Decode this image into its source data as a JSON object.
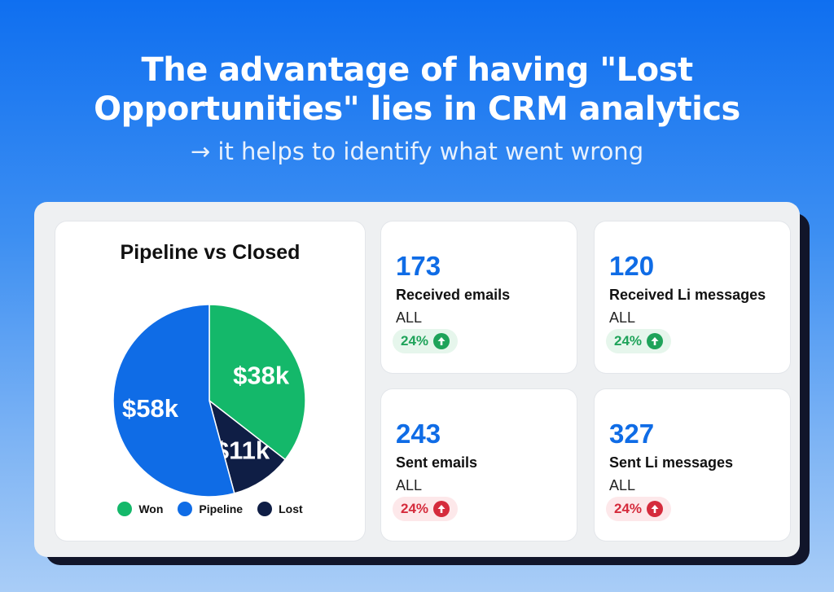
{
  "headline": {
    "line1": "The advantage of having \"Lost",
    "line2": "Opportunities\" lies in CRM analytics",
    "subline": "→ it helps to identify what went wrong"
  },
  "colors": {
    "won": "#14b86a",
    "pipeline": "#0f6ce6",
    "lost": "#0f1e45",
    "up": "#1fa35a",
    "down": "#d52b3c"
  },
  "chart_data": {
    "type": "pie",
    "title": "Pipeline vs Closed",
    "slices": [
      {
        "name": "Won",
        "value": 38,
        "label": "$38k",
        "color": "#14b86a"
      },
      {
        "name": "Lost",
        "value": 11,
        "label": "$11k",
        "color": "#0f1e45"
      },
      {
        "name": "Pipeline",
        "value": 58,
        "label": "$58k",
        "color": "#0f6ce6"
      }
    ],
    "legend": [
      "Won",
      "Pipeline",
      "Lost"
    ],
    "legend_position": "bottom"
  },
  "stats": [
    {
      "value": "173",
      "label": "Received emails",
      "sub": "ALL",
      "badge": "24%",
      "trend": "up",
      "icon": "arrow-up-circle-icon"
    },
    {
      "value": "120",
      "label": "Received Li messages",
      "sub": "ALL",
      "badge": "24%",
      "trend": "up",
      "icon": "arrow-up-circle-icon"
    },
    {
      "value": "243",
      "label": "Sent emails",
      "sub": "ALL",
      "badge": "24%",
      "trend": "down",
      "icon": "arrow-up-circle-icon"
    },
    {
      "value": "327",
      "label": "Sent Li messages",
      "sub": "ALL",
      "badge": "24%",
      "trend": "down",
      "icon": "arrow-up-circle-icon"
    }
  ]
}
